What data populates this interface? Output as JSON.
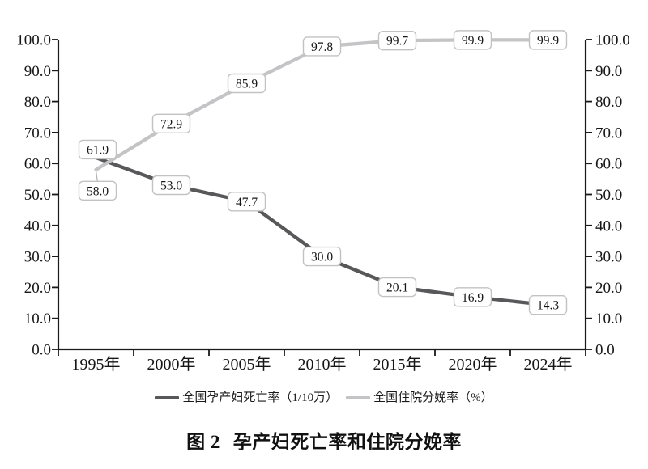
{
  "figure": {
    "caption": {
      "prefix": "图 2",
      "title": "孕产妇死亡率和住院分娩率"
    }
  },
  "chart_data": {
    "type": "line",
    "title": "图 2　孕产妇死亡率和住院分娩率",
    "categories": [
      "1995年",
      "2000年",
      "2005年",
      "2010年",
      "2015年",
      "2020年",
      "2024年"
    ],
    "series": [
      {
        "name": "全国孕产妇死亡率（1/10万）",
        "values": [
          61.9,
          53.0,
          47.7,
          30.0,
          20.1,
          16.9,
          14.3
        ],
        "labels": [
          "61.9",
          "53.0",
          "47.7",
          "30.0",
          "20.1",
          "16.9",
          "14.3"
        ],
        "color": "#58585a"
      },
      {
        "name": "全国住院分娩率（%）",
        "values": [
          58.0,
          72.9,
          85.9,
          97.8,
          99.7,
          99.9,
          99.9
        ],
        "labels": [
          "58.0",
          "72.9",
          "85.9",
          "97.8",
          "99.7",
          "99.9",
          "99.9"
        ],
        "color": "#c4c4c6"
      }
    ],
    "y_axis": {
      "min": 0,
      "max": 100,
      "step": 10,
      "tick_labels": [
        "0.0",
        "10.0",
        "20.0",
        "30.0",
        "40.0",
        "50.0",
        "60.0",
        "70.0",
        "80.0",
        "90.0",
        "100.0"
      ],
      "sides": [
        "left",
        "right"
      ]
    },
    "ylim": [
      0,
      100
    ],
    "xlabel": "",
    "ylabel": "",
    "grid": false,
    "data_labels": true,
    "legend_position": "bottom"
  },
  "colors": {
    "axis": "#1a1a1a",
    "label_box_border": "#c2c2c2",
    "label_box_fill": "#ffffff",
    "leader_line": "#b5b5b5",
    "background": "#ffffff",
    "text": "#161616"
  }
}
